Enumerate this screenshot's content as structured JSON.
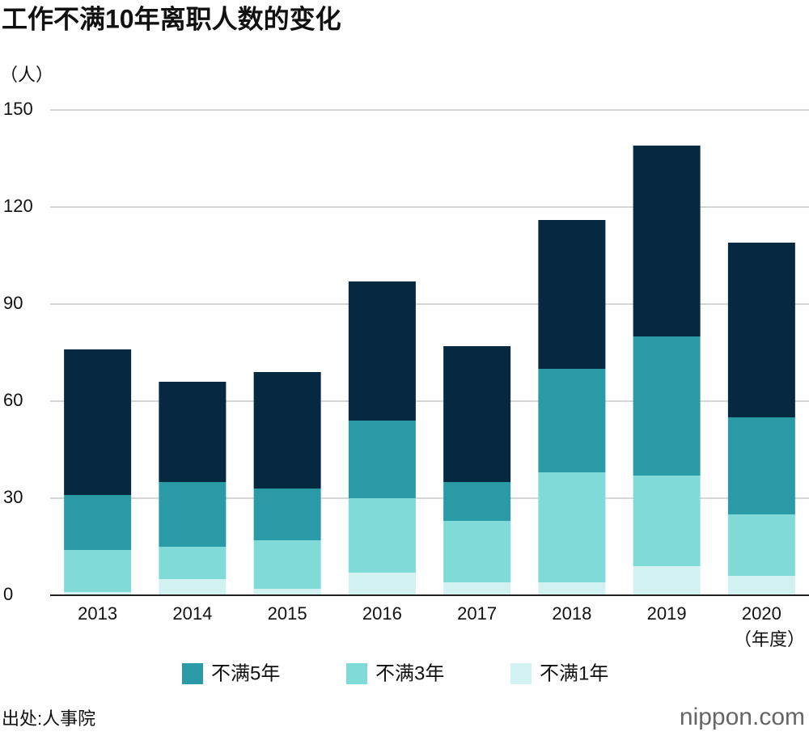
{
  "chart_data": {
    "type": "stacked_bar",
    "title": "工作不满10年离职人数的变化",
    "y_unit": "（人）",
    "x_unit": "（年度）",
    "categories": [
      "2013",
      "2014",
      "2015",
      "2016",
      "2017",
      "2018",
      "2019",
      "2020"
    ],
    "series": [
      {
        "name": "不满1年",
        "color": "#d2f1f1",
        "values": [
          1,
          5,
          2,
          7,
          4,
          4,
          9,
          6
        ]
      },
      {
        "name": "不满3年",
        "color": "#7fdad8",
        "values": [
          13,
          10,
          15,
          23,
          19,
          34,
          28,
          19
        ]
      },
      {
        "name": "不满5年",
        "color": "#2a9ba6",
        "values": [
          17,
          20,
          16,
          24,
          12,
          32,
          43,
          30
        ]
      },
      {
        "color": "#062840",
        "values": [
          45,
          31,
          36,
          43,
          42,
          46,
          59,
          54
        ]
      }
    ],
    "ylim": [
      0,
      150
    ],
    "yticks": [
      0,
      30,
      60,
      90,
      120,
      150
    ],
    "grid": true,
    "source": "出处:人事院",
    "logo": "nippon.com"
  }
}
